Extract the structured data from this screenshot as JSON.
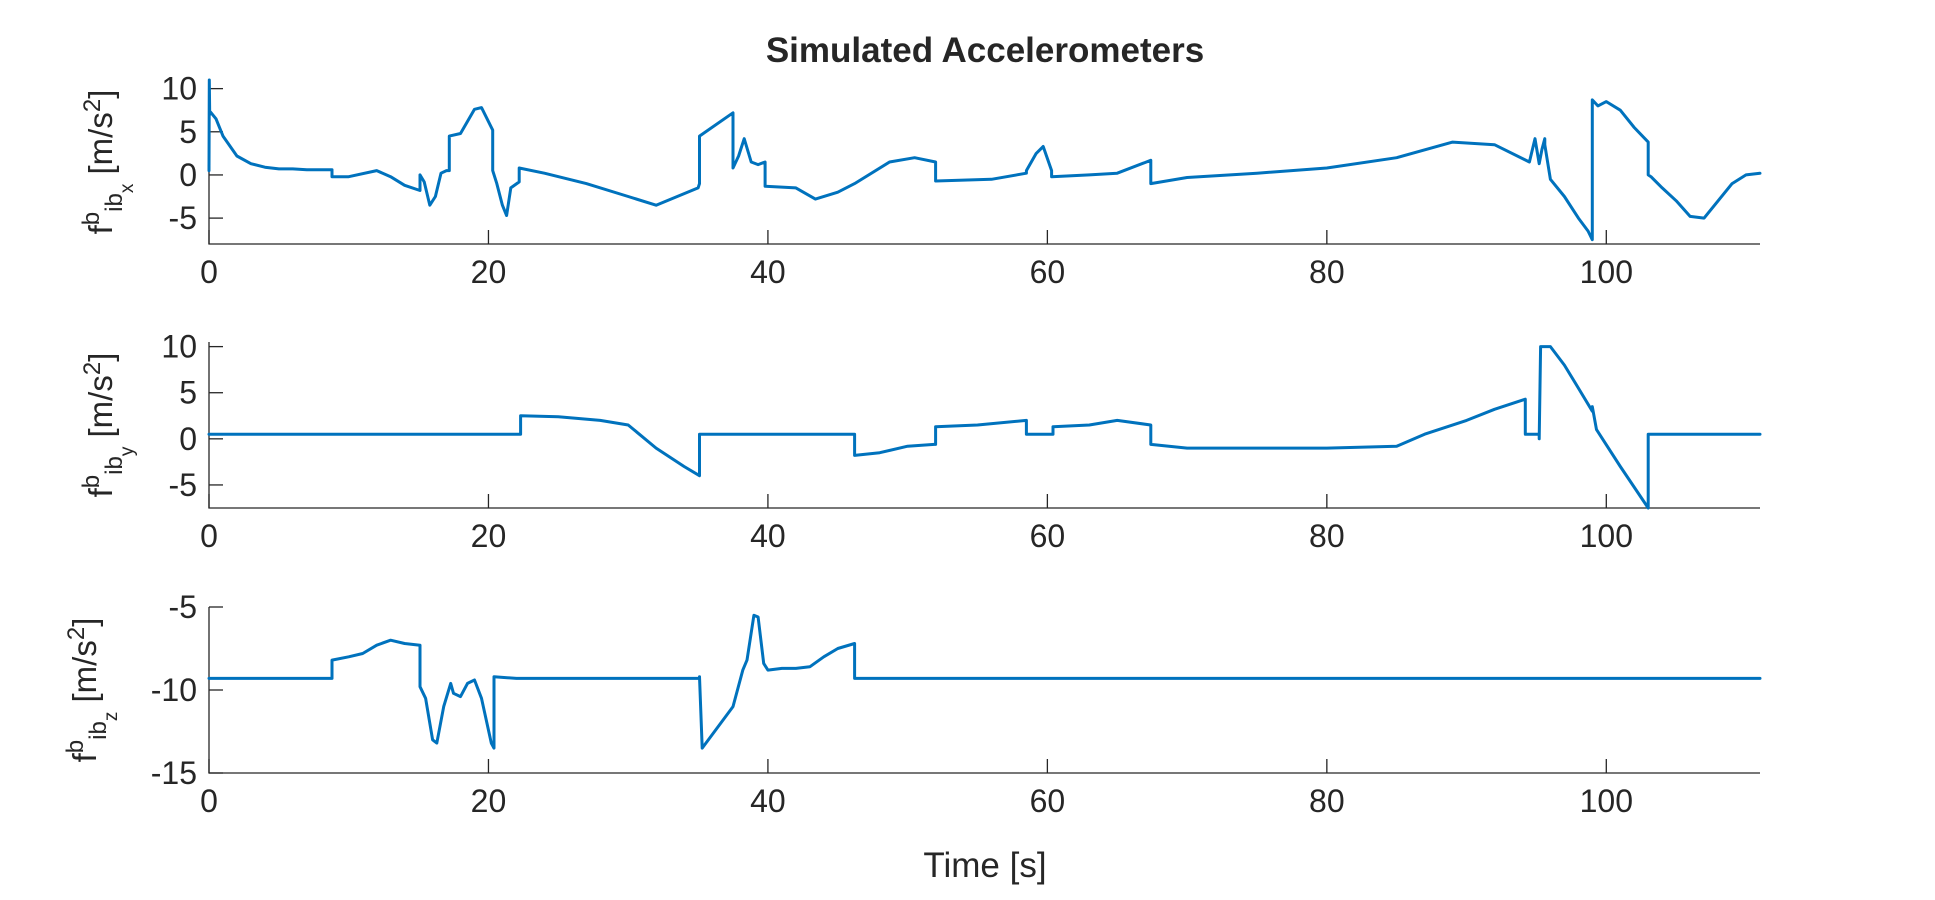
{
  "chart_data": {
    "type": "line",
    "title": "Simulated Accelerometers",
    "xlabel": "Time [s]",
    "line_color": "#0072BD",
    "panels": [
      {
        "ylabel": {
          "main": "f",
          "sup": "b",
          "sub": "ib",
          "subsub": "x",
          "unit": " [m/s",
          "unit_sup": "2",
          "unit_end": "]"
        },
        "xlim": [
          0,
          111
        ],
        "ylim": [
          -8,
          11
        ],
        "xticks": [
          0,
          20,
          40,
          60,
          80,
          100
        ],
        "xtick_labels": [
          "0",
          "20",
          "40",
          "60",
          "80",
          "100"
        ],
        "yticks": [
          10,
          5,
          0,
          -5
        ],
        "ytick_labels": [
          "10",
          "5",
          "0",
          "-5"
        ],
        "x": [
          0,
          0.02,
          0.05,
          0.1,
          0.5,
          1,
          2,
          3,
          4,
          5,
          6,
          7,
          8,
          8.8,
          8.8,
          10,
          12,
          13,
          14,
          15.1,
          15.1,
          15.4,
          15.8,
          16.2,
          16.6,
          17,
          17.2,
          17.2,
          18,
          19,
          19.5,
          20.3,
          20.3,
          20.6,
          21,
          21.3,
          21.6,
          22.2,
          22.2,
          24,
          27,
          30,
          32,
          35,
          35.1,
          35.1,
          37.5,
          37.5,
          37.9,
          38.3,
          38.8,
          39.3,
          39.8,
          39.8,
          42,
          43.4,
          45,
          46.2,
          46.2,
          48.7,
          50.5,
          52,
          52,
          56,
          58.5,
          58.5,
          59.2,
          59.7,
          60.3,
          60.3,
          63,
          65,
          67.4,
          67.4,
          70,
          75,
          80,
          85,
          89,
          92,
          94.5,
          94.9,
          95.2,
          95.4,
          95.6,
          95.6,
          96,
          97,
          98,
          98.7,
          99,
          99,
          99.4,
          100,
          101,
          102,
          103,
          103,
          103.2,
          104,
          105,
          106,
          107,
          108,
          109,
          110,
          111
        ],
        "values": [
          0.5,
          11,
          7,
          7.3,
          6.5,
          4.5,
          2.2,
          1.3,
          0.9,
          0.7,
          0.7,
          0.6,
          0.6,
          0.6,
          -0.2,
          -0.2,
          0.5,
          -0.2,
          -1.2,
          -1.8,
          0,
          -0.8,
          -3.5,
          -2.5,
          0.2,
          0.5,
          0.5,
          4.5,
          4.8,
          7.6,
          7.8,
          5.2,
          0.5,
          -1,
          -3.5,
          -4.7,
          -1.5,
          -0.8,
          0.8,
          0.2,
          -1,
          -2.5,
          -3.5,
          -1.5,
          -1,
          4.5,
          7.2,
          0.8,
          2.2,
          4.2,
          1.5,
          1.2,
          1.5,
          -1.3,
          -1.5,
          -2.8,
          -2,
          -1,
          -1,
          1.5,
          2,
          1.5,
          -0.7,
          -0.5,
          0.2,
          0.5,
          2.5,
          3.3,
          0.5,
          -0.2,
          0,
          0.2,
          1.7,
          -1,
          -0.3,
          0.2,
          0.8,
          2,
          3.8,
          3.5,
          1.5,
          4.2,
          1.3,
          3,
          4.2,
          3.5,
          -0.5,
          -2.5,
          -5,
          -6.5,
          -7.5,
          8.7,
          8,
          8.5,
          7.5,
          5.5,
          3.8,
          0,
          -0.2,
          -1.5,
          -3,
          -4.8,
          -5,
          -3,
          -1,
          0,
          0.2
        ]
      },
      {
        "ylabel": {
          "main": "f",
          "sup": "b",
          "sub": "ib",
          "subsub": "y",
          "unit": " [m/s",
          "unit_sup": "2",
          "unit_end": "]"
        },
        "xlim": [
          0,
          111
        ],
        "ylim": [
          -7.5,
          10.5
        ],
        "xticks": [
          0,
          20,
          40,
          60,
          80,
          100
        ],
        "xtick_labels": [
          "0",
          "20",
          "40",
          "60",
          "80",
          "100"
        ],
        "yticks": [
          10,
          5,
          0,
          -5
        ],
        "ytick_labels": [
          "10",
          "5",
          "0",
          "-5"
        ],
        "x": [
          0,
          22.2,
          22.3,
          22.3,
          25,
          28,
          30,
          32,
          34,
          35.1,
          35.1,
          35.3,
          40,
          46.2,
          46.2,
          48,
          50,
          51.9,
          52,
          52,
          55,
          58.5,
          58.5,
          60.4,
          60.4,
          63,
          65,
          67.4,
          67.4,
          70,
          75,
          80,
          85,
          87,
          90,
          92,
          94.2,
          94.2,
          95.2,
          95.2,
          95.3,
          96,
          97,
          98,
          99,
          99,
          99.3,
          101,
          103,
          103,
          103.2,
          111
        ],
        "values": [
          0.5,
          0.5,
          0.5,
          2.5,
          2.4,
          2,
          1.5,
          -1,
          -3,
          -4,
          0.5,
          0.5,
          0.5,
          0.5,
          -1.8,
          -1.5,
          -0.8,
          -0.6,
          -0.6,
          1.3,
          1.5,
          2,
          0.5,
          0.5,
          1.3,
          1.5,
          2,
          1.5,
          -0.6,
          -1,
          -1,
          -1,
          -0.8,
          0.5,
          2,
          3.2,
          4.3,
          0.5,
          0.5,
          0,
          10,
          10,
          8,
          5.5,
          3,
          3.5,
          1,
          -3,
          -7.5,
          0.5,
          0.5,
          0.5
        ]
      },
      {
        "ylabel": {
          "main": "f",
          "sup": "b",
          "sub": "ib",
          "subsub": "z",
          "unit": " [m/s",
          "unit_sup": "2",
          "unit_end": "]"
        },
        "xlim": [
          0,
          111
        ],
        "ylim": [
          -15,
          -5
        ],
        "xticks": [
          0,
          20,
          40,
          60,
          80,
          100
        ],
        "xtick_labels": [
          "0",
          "20",
          "40",
          "60",
          "80",
          "100"
        ],
        "yticks": [
          -5,
          -10,
          -15
        ],
        "ytick_labels": [
          "-5",
          "-10",
          "-15"
        ],
        "x": [
          0,
          8.8,
          8.8,
          10,
          11,
          12,
          13,
          14,
          15.1,
          15.1,
          15.5,
          16,
          16.3,
          16.8,
          17.3,
          17.5,
          18,
          18.5,
          19,
          19.5,
          20.2,
          20.4,
          20.4,
          22,
          30,
          35.1,
          35.1,
          35.3,
          37.5,
          38.2,
          38.5,
          39,
          39.3,
          39.7,
          40,
          41,
          42,
          43,
          44,
          45,
          46.2,
          46.2,
          50,
          60,
          70,
          80,
          90,
          100,
          111
        ],
        "values": [
          -9.3,
          -9.3,
          -8.2,
          -8,
          -7.8,
          -7.3,
          -7,
          -7.2,
          -7.3,
          -9.8,
          -10.5,
          -13,
          -13.2,
          -11,
          -9.6,
          -10.2,
          -10.4,
          -9.6,
          -9.4,
          -10.5,
          -13.2,
          -13.5,
          -9.2,
          -9.3,
          -9.3,
          -9.3,
          -9.2,
          -13.5,
          -11,
          -8.8,
          -8.2,
          -5.5,
          -5.6,
          -8.4,
          -8.8,
          -8.7,
          -8.7,
          -8.6,
          -8,
          -7.5,
          -7.2,
          -9.3,
          -9.3,
          -9.3,
          -9.3,
          -9.3,
          -9.3,
          -9.3,
          -9.3
        ]
      }
    ]
  }
}
